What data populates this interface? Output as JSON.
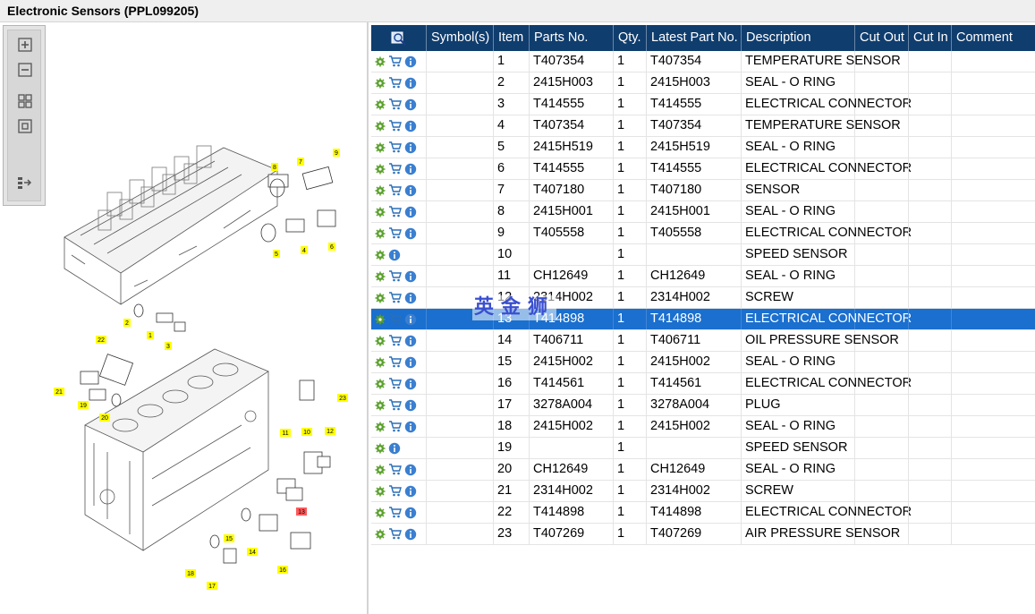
{
  "title": "Electronic Sensors (PPL099205)",
  "toolbar": {
    "buttons": [
      "zoom-in-icon",
      "zoom-out-icon",
      "fit-all-icon",
      "fit-page-icon",
      "export-icon"
    ]
  },
  "diagram": {
    "callouts": [
      "1",
      "2",
      "3",
      "4",
      "5",
      "6",
      "7",
      "8",
      "9",
      "10",
      "11",
      "12",
      "13",
      "14",
      "15",
      "16",
      "17",
      "18",
      "19",
      "20",
      "21",
      "22",
      "23"
    ],
    "highlight_color": "#ff5a5a",
    "callout_color": "#ffff00"
  },
  "grid": {
    "columns": [
      "",
      "Symbol(s)",
      "Item",
      "Parts No.",
      "Qty.",
      "Latest Part No.",
      "Description",
      "Cut Out",
      "Cut In",
      "Comment"
    ],
    "rows": [
      {
        "cart": true,
        "item": "1",
        "part": "T407354",
        "qty": "1",
        "latest": "T407354",
        "desc": "TEMPERATURE SENSOR"
      },
      {
        "cart": true,
        "item": "2",
        "part": "2415H003",
        "qty": "1",
        "latest": "2415H003",
        "desc": "SEAL - O RING"
      },
      {
        "cart": true,
        "item": "3",
        "part": "T414555",
        "qty": "1",
        "latest": "T414555",
        "desc": "ELECTRICAL CONNECTOR"
      },
      {
        "cart": true,
        "item": "4",
        "part": "T407354",
        "qty": "1",
        "latest": "T407354",
        "desc": "TEMPERATURE SENSOR"
      },
      {
        "cart": true,
        "item": "5",
        "part": "2415H519",
        "qty": "1",
        "latest": "2415H519",
        "desc": "SEAL - O RING"
      },
      {
        "cart": true,
        "item": "6",
        "part": "T414555",
        "qty": "1",
        "latest": "T414555",
        "desc": "ELECTRICAL CONNECTOR"
      },
      {
        "cart": true,
        "item": "7",
        "part": "T407180",
        "qty": "1",
        "latest": "T407180",
        "desc": "SENSOR"
      },
      {
        "cart": true,
        "item": "8",
        "part": "2415H001",
        "qty": "1",
        "latest": "2415H001",
        "desc": "SEAL - O RING"
      },
      {
        "cart": true,
        "item": "9",
        "part": "T405558",
        "qty": "1",
        "latest": "T405558",
        "desc": "ELECTRICAL CONNECTOR"
      },
      {
        "cart": false,
        "item": "10",
        "part": "",
        "qty": "1",
        "latest": "",
        "desc": "SPEED SENSOR"
      },
      {
        "cart": true,
        "item": "11",
        "part": "CH12649",
        "qty": "1",
        "latest": "CH12649",
        "desc": "SEAL - O RING"
      },
      {
        "cart": true,
        "item": "12",
        "part": "2314H002",
        "qty": "1",
        "latest": "2314H002",
        "desc": "SCREW"
      },
      {
        "cart": true,
        "item": "13",
        "part": "T414898",
        "qty": "1",
        "latest": "T414898",
        "desc": "ELECTRICAL CONNECTOR",
        "selected": true
      },
      {
        "cart": true,
        "item": "14",
        "part": "T406711",
        "qty": "1",
        "latest": "T406711",
        "desc": "OIL PRESSURE SENSOR"
      },
      {
        "cart": true,
        "item": "15",
        "part": "2415H002",
        "qty": "1",
        "latest": "2415H002",
        "desc": "SEAL - O RING"
      },
      {
        "cart": true,
        "item": "16",
        "part": "T414561",
        "qty": "1",
        "latest": "T414561",
        "desc": "ELECTRICAL CONNECTOR"
      },
      {
        "cart": true,
        "item": "17",
        "part": "3278A004",
        "qty": "1",
        "latest": "3278A004",
        "desc": "PLUG"
      },
      {
        "cart": true,
        "item": "18",
        "part": "2415H002",
        "qty": "1",
        "latest": "2415H002",
        "desc": "SEAL - O RING"
      },
      {
        "cart": false,
        "item": "19",
        "part": "",
        "qty": "1",
        "latest": "",
        "desc": "SPEED SENSOR"
      },
      {
        "cart": true,
        "item": "20",
        "part": "CH12649",
        "qty": "1",
        "latest": "CH12649",
        "desc": "SEAL - O RING"
      },
      {
        "cart": true,
        "item": "21",
        "part": "2314H002",
        "qty": "1",
        "latest": "2314H002",
        "desc": "SCREW"
      },
      {
        "cart": true,
        "item": "22",
        "part": "T414898",
        "qty": "1",
        "latest": "T414898",
        "desc": "ELECTRICAL CONNECTOR"
      },
      {
        "cart": true,
        "item": "23",
        "part": "T407269",
        "qty": "1",
        "latest": "T407269",
        "desc": "AIR PRESSURE SENSOR"
      }
    ]
  },
  "watermark": "英金狮",
  "colors": {
    "header_bg": "#0f3d6e",
    "selected_row": "#1a6fcf",
    "gear_icon": "#5aa02c",
    "cart_icon": "#2a6fb8",
    "info_icon": "#3a7fd0"
  }
}
